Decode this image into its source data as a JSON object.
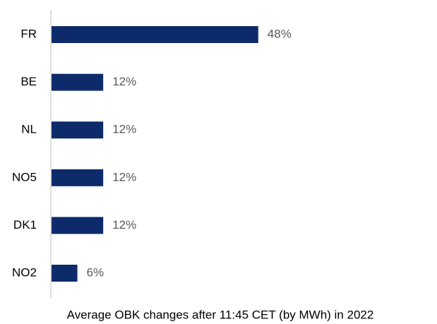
{
  "chart_data": {
    "type": "hbar",
    "categories": [
      "FR",
      "BE",
      "NL",
      "NO5",
      "DK1",
      "NO2"
    ],
    "values": [
      48,
      12,
      12,
      12,
      12,
      6
    ],
    "value_labels": [
      "48%",
      "12%",
      "12%",
      "12%",
      "12%",
      "6%"
    ],
    "color": "#0d2a6b",
    "xlabel": "Average OBK changes after 11:45 CET (by MWh) in 2022"
  }
}
